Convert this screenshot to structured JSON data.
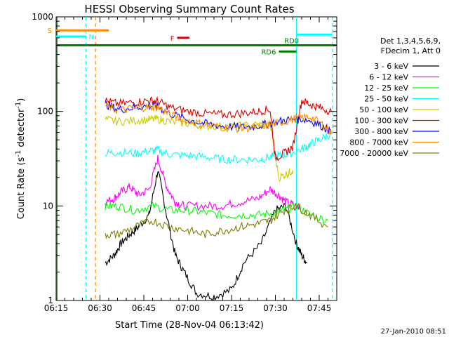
{
  "chart_data": {
    "type": "line",
    "title": "HESSI Observing Summary Count Rates",
    "xlabel": "Start Time (28-Nov-04 06:13:42)",
    "ylabel_main": "Count Rate (s",
    "ylabel_exp1": "-1",
    "ylabel_mid": " detector",
    "ylabel_exp2": "-1",
    "ylabel_end": ")",
    "y_scale": "log",
    "ylim": [
      1,
      1000
    ],
    "xlim_minutes": [
      6.25,
      7.85
    ],
    "x_ticks": [
      {
        "label": "06:15",
        "t": 6.25
      },
      {
        "label": "06:30",
        "t": 6.5
      },
      {
        "label": "06:45",
        "t": 6.75
      },
      {
        "label": "07:00",
        "t": 7.0
      },
      {
        "label": "07:15",
        "t": 7.25
      },
      {
        "label": "07:30",
        "t": 7.5
      },
      {
        "label": "07:45",
        "t": 7.75
      }
    ],
    "y_ticks": [
      {
        "label": "1",
        "v": 1
      },
      {
        "label": "10",
        "v": 10
      },
      {
        "label": "100",
        "v": 100
      },
      {
        "label": "1000",
        "v": 1000
      }
    ],
    "legend_header": [
      "Det 1,3,4,5,6,9,",
      "FDecim 1, Att 0"
    ],
    "legend_placement": "right",
    "series": [
      {
        "name": "3 - 6 keV",
        "color": "#000000",
        "points": [
          [
            6.53,
            2.5
          ],
          [
            6.58,
            3
          ],
          [
            6.62,
            4
          ],
          [
            6.67,
            5
          ],
          [
            6.72,
            6
          ],
          [
            6.78,
            8
          ],
          [
            6.83,
            24
          ],
          [
            6.88,
            8
          ],
          [
            6.93,
            3
          ],
          [
            6.98,
            2
          ],
          [
            7.05,
            1.2
          ],
          [
            7.15,
            1.1
          ],
          [
            7.25,
            1.3
          ],
          [
            7.32,
            2.5
          ],
          [
            7.42,
            4
          ],
          [
            7.5,
            9
          ],
          [
            7.56,
            10
          ],
          [
            7.62,
            4
          ],
          [
            7.65,
            3
          ],
          [
            7.68,
            2.5
          ]
        ]
      },
      {
        "name": "6 - 12 keV",
        "color": "#ff00ff",
        "points": [
          [
            6.53,
            11
          ],
          [
            6.58,
            12
          ],
          [
            6.62,
            14
          ],
          [
            6.67,
            16
          ],
          [
            6.72,
            13
          ],
          [
            6.78,
            15
          ],
          [
            6.83,
            32
          ],
          [
            6.88,
            16
          ],
          [
            6.93,
            11
          ],
          [
            6.98,
            10
          ],
          [
            7.1,
            10
          ],
          [
            7.2,
            10
          ],
          [
            7.3,
            11
          ],
          [
            7.4,
            12
          ],
          [
            7.47,
            15
          ],
          [
            7.52,
            13
          ],
          [
            7.56,
            11
          ],
          [
            7.62,
            10
          ],
          [
            7.64,
            10
          ]
        ]
      },
      {
        "name": "12 - 25 keV",
        "color": "#00ff00",
        "points": [
          [
            6.53,
            10
          ],
          [
            6.6,
            10
          ],
          [
            6.7,
            9
          ],
          [
            6.8,
            10
          ],
          [
            6.9,
            9
          ],
          [
            7.0,
            9
          ],
          [
            7.1,
            8.5
          ],
          [
            7.2,
            8
          ],
          [
            7.3,
            8
          ],
          [
            7.4,
            8
          ],
          [
            7.5,
            8.5
          ],
          [
            7.55,
            9
          ],
          [
            7.62,
            10
          ],
          [
            7.7,
            8
          ],
          [
            7.8,
            7
          ]
        ]
      },
      {
        "name": "25 - 50 keV",
        "color": "#00ffff",
        "points": [
          [
            6.53,
            36
          ],
          [
            6.6,
            37
          ],
          [
            6.7,
            36
          ],
          [
            6.78,
            38
          ],
          [
            6.83,
            39
          ],
          [
            6.9,
            35
          ],
          [
            7.0,
            34
          ],
          [
            7.1,
            33
          ],
          [
            7.2,
            31
          ],
          [
            7.3,
            31
          ],
          [
            7.4,
            31
          ],
          [
            7.47,
            33
          ],
          [
            7.52,
            34
          ],
          [
            7.57,
            35
          ],
          [
            7.65,
            40
          ],
          [
            7.7,
            45
          ],
          [
            7.75,
            50
          ],
          [
            7.82,
            58
          ]
        ]
      },
      {
        "name": "50 - 100 keV",
        "color": "#cccc00",
        "points": [
          [
            6.53,
            82
          ],
          [
            6.6,
            78
          ],
          [
            6.7,
            80
          ],
          [
            6.78,
            82
          ],
          [
            6.83,
            83
          ],
          [
            6.9,
            78
          ],
          [
            7.0,
            74
          ],
          [
            7.1,
            70
          ],
          [
            7.2,
            70
          ],
          [
            7.3,
            70
          ],
          [
            7.4,
            72
          ],
          [
            7.47,
            74
          ],
          [
            7.52,
            20
          ],
          [
            7.57,
            22
          ],
          [
            7.6,
            24
          ]
        ]
      },
      {
        "name": "100 - 300 keV",
        "color": "#dd0000",
        "points": [
          [
            6.53,
            130
          ],
          [
            6.6,
            120
          ],
          [
            6.7,
            125
          ],
          [
            6.78,
            130
          ],
          [
            6.83,
            128
          ],
          [
            6.9,
            110
          ],
          [
            7.0,
            100
          ],
          [
            7.1,
            95
          ],
          [
            7.2,
            92
          ],
          [
            7.3,
            95
          ],
          [
            7.4,
            100
          ],
          [
            7.47,
            105
          ],
          [
            7.5,
            32
          ],
          [
            7.55,
            36
          ],
          [
            7.6,
            42
          ],
          [
            7.65,
            130
          ],
          [
            7.7,
            118
          ],
          [
            7.75,
            110
          ],
          [
            7.82,
            100
          ]
        ]
      },
      {
        "name": "300 - 800 keV",
        "color": "#0000ff",
        "points": [
          [
            6.53,
            120
          ],
          [
            6.6,
            105
          ],
          [
            6.7,
            110
          ],
          [
            6.78,
            115
          ],
          [
            6.83,
            112
          ],
          [
            6.9,
            95
          ],
          [
            7.0,
            82
          ],
          [
            7.1,
            74
          ],
          [
            7.2,
            70
          ],
          [
            7.3,
            68
          ],
          [
            7.4,
            70
          ],
          [
            7.47,
            75
          ],
          [
            7.55,
            80
          ],
          [
            7.62,
            85
          ],
          [
            7.7,
            80
          ],
          [
            7.78,
            68
          ],
          [
            7.82,
            60
          ]
        ]
      },
      {
        "name": "800 - 7000 keV",
        "color": "#ff8c00",
        "points": [
          [
            6.53,
            115
          ],
          [
            6.6,
            102
          ],
          [
            6.7,
            108
          ],
          [
            6.78,
            112
          ],
          [
            6.83,
            110
          ],
          [
            6.9,
            92
          ],
          [
            7.0,
            80
          ],
          [
            7.1,
            72
          ],
          [
            7.2,
            68
          ],
          [
            7.3,
            66
          ],
          [
            7.4,
            68
          ],
          [
            7.47,
            72
          ],
          [
            7.55,
            78
          ],
          [
            7.62,
            84
          ],
          [
            7.7,
            88
          ],
          [
            7.78,
            70
          ],
          [
            7.82,
            58
          ]
        ]
      },
      {
        "name": "7000 - 20000 keV",
        "color": "#808000",
        "points": [
          [
            6.53,
            5
          ],
          [
            6.6,
            5
          ],
          [
            6.7,
            6
          ],
          [
            6.8,
            7
          ],
          [
            6.9,
            6
          ],
          [
            7.0,
            5.5
          ],
          [
            7.1,
            5
          ],
          [
            7.2,
            5.5
          ],
          [
            7.3,
            6
          ],
          [
            7.4,
            6.5
          ],
          [
            7.47,
            7
          ],
          [
            7.55,
            9
          ],
          [
            7.62,
            10
          ],
          [
            7.7,
            8
          ],
          [
            7.8,
            6
          ]
        ]
      }
    ],
    "flags": [
      {
        "label": "S",
        "color": "#ff8c00",
        "x0": 6.25,
        "x1": 6.55,
        "y": 720,
        "label_side": "left"
      },
      {
        "label": "N",
        "color": "#00ffff",
        "x0": 6.25,
        "x1": 6.42,
        "y": 620,
        "label_side": "right"
      },
      {
        "label": "F",
        "color": "#dd0000",
        "x0": 6.94,
        "x1": 7.01,
        "y": 600,
        "label_side": "left"
      },
      {
        "label": "RD0",
        "color": "#008000",
        "x0": 6.25,
        "x1": 7.85,
        "y": 500,
        "label_side": "above-right"
      },
      {
        "label": "RD6",
        "color": "#008000",
        "x0": 7.52,
        "x1": 7.62,
        "y": 430,
        "label_side": "left"
      }
    ],
    "vertical_markers": [
      {
        "t": 6.255,
        "color": "#008000",
        "style": "solid"
      },
      {
        "t": 6.42,
        "color": "#00ffff",
        "style": "dashed"
      },
      {
        "t": 6.475,
        "color": "#ff8c00",
        "style": "dashed"
      },
      {
        "t": 7.62,
        "color": "#00ffff",
        "style": "solid"
      },
      {
        "t": 7.825,
        "color": "#00ffff",
        "style": "dashed"
      }
    ],
    "cyan_box": {
      "x0": 7.62,
      "x1": 7.825,
      "y": 650,
      "color": "#00ffff"
    }
  },
  "footer_stamp": "27-Jan-2010 08:51"
}
